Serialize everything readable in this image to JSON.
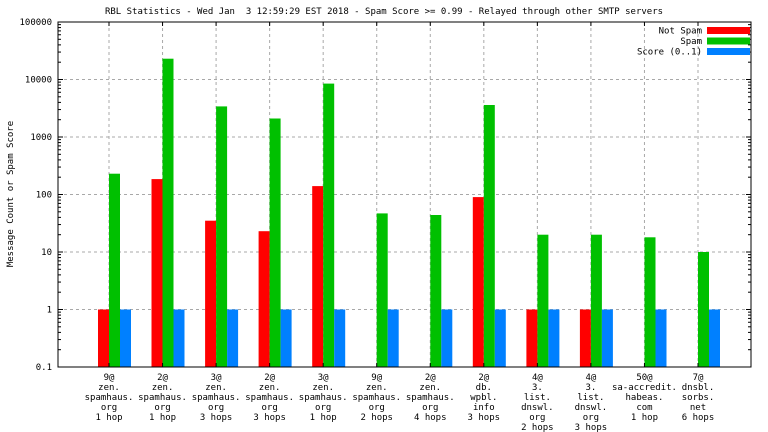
{
  "chart_data": {
    "type": "bar",
    "title": "RBL Statistics - Wed Jan  3 12:59:29 EST 2018 - Spam Score >= 0.99 - Relayed through other SMTP servers",
    "ylabel": "Message Count or Spam Score",
    "xlabel": "",
    "yscale": "log",
    "ylim": [
      0.1,
      100000
    ],
    "ytick_values": [
      0.1,
      1,
      10,
      100,
      1000,
      10000,
      100000
    ],
    "ytick_labels": [
      "0.1",
      "1",
      "10",
      "100",
      "1000",
      "10000",
      "100000"
    ],
    "grid": true,
    "grid_color": "#a8a8a8",
    "border_color": "#000000",
    "background": "#ffffff",
    "legend_position": "top-right-inside",
    "categories": [
      [
        "9@",
        "zen.",
        "spamhaus.",
        "org",
        "1 hop"
      ],
      [
        "2@",
        "zen.",
        "spamhaus.",
        "org",
        "1 hop"
      ],
      [
        "3@",
        "zen.",
        "spamhaus.",
        "org",
        "3 hops"
      ],
      [
        "2@",
        "zen.",
        "spamhaus.",
        "org",
        "3 hops"
      ],
      [
        "3@",
        "zen.",
        "spamhaus.",
        "org",
        "1 hop"
      ],
      [
        "9@",
        "zen.",
        "spamhaus.",
        "org",
        "2 hops"
      ],
      [
        "2@",
        "zen.",
        "spamhaus.",
        "org",
        "4 hops"
      ],
      [
        "2@",
        "db.",
        "wpbl.",
        "info",
        "3 hops"
      ],
      [
        "4@",
        "3.",
        "list.",
        "dnswl.",
        "org",
        "2 hops"
      ],
      [
        "4@",
        "3.",
        "list.",
        "dnswl.",
        "org",
        "3 hops"
      ],
      [
        "50@",
        "sa-accredit.",
        "habeas.",
        "com",
        "1 hop"
      ],
      [
        "7@",
        "dnsbl.",
        "sorbs.",
        "net",
        "6 hops"
      ]
    ],
    "series": [
      {
        "name": "Not Spam",
        "color": "#ff0000",
        "values": [
          1,
          185,
          35,
          23,
          140,
          null,
          null,
          90,
          1,
          1,
          null,
          null
        ]
      },
      {
        "name": "Spam",
        "color": "#00c000",
        "values": [
          230,
          23000,
          3400,
          2100,
          8500,
          47,
          44,
          3600,
          20,
          20,
          18,
          10
        ]
      },
      {
        "name": "Score (0..1)",
        "color": "#0080ff",
        "values": [
          1,
          1,
          1,
          1,
          1,
          1,
          1,
          1,
          1,
          1,
          1,
          1
        ]
      }
    ]
  }
}
